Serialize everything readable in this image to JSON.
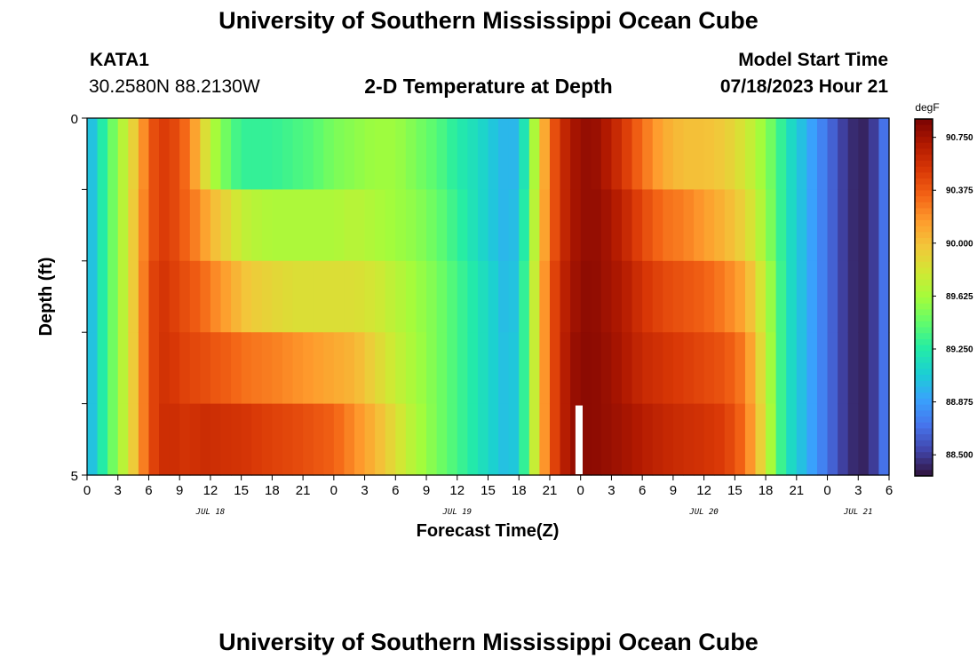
{
  "header": {
    "title": "University of Southern Mississippi Ocean Cube",
    "station": "KATA1",
    "coords": "30.2580N  88.2130W",
    "chart_title": "2-D Temperature at Depth",
    "model_label": "Model Start Time",
    "model_time": "07/18/2023 Hour 21"
  },
  "footer": {
    "title": "University of Southern Mississippi Ocean Cube"
  },
  "colors": {
    "colormap": [
      "#30123b",
      "#4145ab",
      "#4675ed",
      "#39a2fc",
      "#1bcfd4",
      "#24eca6",
      "#61fc6c",
      "#a4fc3b",
      "#d1e834",
      "#f3c63a",
      "#fe9b2d",
      "#f36315",
      "#d93806",
      "#b11901",
      "#7a0403"
    ],
    "missing": "#ffffff"
  },
  "chart_data": {
    "type": "heatmap",
    "title": "2-D Temperature at Depth",
    "xlabel": "Forecast Time(Z)",
    "ylabel": "Depth (ft)",
    "colorbar_label": "degF",
    "colorbar_ticks": [
      "90.750",
      "90.375",
      "90.000",
      "89.625",
      "89.250",
      "88.875",
      "88.500"
    ],
    "colorbar_values": [
      90.75,
      90.375,
      90.0,
      89.625,
      89.25,
      88.875,
      88.5
    ],
    "clim": [
      88.35,
      90.88
    ],
    "x_hours": [
      0,
      3,
      6,
      9,
      12,
      15,
      18,
      21,
      24,
      27,
      30,
      33,
      36,
      39,
      42,
      45,
      48,
      51,
      54,
      57,
      60,
      63,
      66,
      69,
      72,
      75,
      78
    ],
    "x_tick_labels": [
      "0",
      "3",
      "6",
      "9",
      "12",
      "15",
      "18",
      "21",
      "0",
      "3",
      "6",
      "9",
      "12",
      "15",
      "18",
      "21",
      "0",
      "3",
      "6",
      "9",
      "12",
      "15",
      "18",
      "21",
      "0",
      "3",
      "6"
    ],
    "x_range_hours": [
      0,
      78
    ],
    "day_labels": [
      {
        "label": "JUL 18",
        "hour": 12
      },
      {
        "label": "JUL 19",
        "hour": 36
      },
      {
        "label": "JUL 20",
        "hour": 60
      },
      {
        "label": "JUL 21",
        "hour": 75
      }
    ],
    "y_tick_labels": [
      "0",
      "5"
    ],
    "y_range": [
      0,
      5
    ],
    "depth_levels": [
      0,
      1,
      2,
      3,
      4,
      5
    ],
    "missing_segment": {
      "hour_start": 47.5,
      "hour_end": 48.2,
      "depth_start": 4,
      "depth_end": 5
    },
    "profiles_hours": [
      0,
      1,
      2,
      3,
      4,
      5,
      6,
      7,
      8,
      9,
      10,
      11,
      12,
      14,
      15,
      16,
      18,
      20,
      22,
      24,
      26,
      28,
      30,
      32,
      34,
      36,
      38,
      40,
      41,
      42,
      43,
      44,
      45,
      46,
      47,
      48,
      49,
      50,
      52,
      54,
      56,
      58,
      60,
      62,
      64,
      66,
      67,
      68,
      70,
      72,
      74,
      76,
      78
    ],
    "profiles_degF": [
      [
        88.9,
        88.9,
        88.9,
        88.9,
        88.9
      ],
      [
        89.15,
        89.15,
        89.15,
        89.15,
        89.15
      ],
      [
        89.35,
        89.35,
        89.35,
        89.35,
        89.35
      ],
      [
        89.6,
        89.6,
        89.6,
        89.6,
        89.6
      ],
      [
        89.8,
        89.8,
        89.8,
        89.8,
        89.8
      ],
      [
        90.05,
        90.1,
        90.1,
        90.1,
        90.1
      ],
      [
        90.35,
        90.35,
        90.4,
        90.4,
        90.4
      ],
      [
        90.5,
        90.5,
        90.55,
        90.55,
        90.55
      ],
      [
        90.5,
        90.5,
        90.52,
        90.55,
        90.6
      ],
      [
        90.4,
        90.4,
        90.45,
        90.5,
        90.55
      ],
      [
        90.25,
        90.3,
        90.4,
        90.45,
        90.55
      ],
      [
        90.0,
        90.2,
        90.35,
        90.45,
        90.58
      ],
      [
        89.7,
        90.05,
        90.25,
        90.4,
        90.58
      ],
      [
        89.4,
        89.85,
        90.1,
        90.35,
        90.55
      ],
      [
        89.3,
        89.75,
        90.0,
        90.3,
        90.55
      ],
      [
        89.3,
        89.7,
        89.95,
        90.28,
        90.52
      ],
      [
        89.3,
        89.65,
        89.9,
        90.25,
        90.48
      ],
      [
        89.35,
        89.65,
        89.85,
        90.2,
        90.45
      ],
      [
        89.4,
        89.65,
        89.85,
        90.15,
        90.4
      ],
      [
        89.5,
        89.65,
        89.85,
        90.1,
        90.35
      ],
      [
        89.55,
        89.7,
        89.85,
        90.05,
        90.2
      ],
      [
        89.6,
        89.65,
        89.8,
        89.9,
        90.05
      ],
      [
        89.6,
        89.6,
        89.7,
        89.75,
        89.85
      ],
      [
        89.5,
        89.55,
        89.6,
        89.62,
        89.65
      ],
      [
        89.4,
        89.45,
        89.5,
        89.5,
        89.5
      ],
      [
        89.25,
        89.3,
        89.35,
        89.35,
        89.35
      ],
      [
        89.15,
        89.15,
        89.2,
        89.2,
        89.2
      ],
      [
        89.0,
        89.0,
        89.05,
        89.05,
        89.05
      ],
      [
        88.95,
        88.95,
        88.95,
        88.98,
        88.98
      ],
      [
        89.0,
        89.05,
        89.1,
        89.1,
        89.1
      ],
      [
        89.4,
        89.45,
        89.5,
        89.5,
        89.5
      ],
      [
        89.9,
        89.95,
        90.0,
        90.0,
        90.0
      ],
      [
        90.3,
        90.3,
        90.35,
        90.35,
        90.35
      ],
      [
        90.55,
        90.55,
        90.6,
        90.6,
        90.6
      ],
      [
        90.7,
        90.7,
        90.72,
        90.75,
        90.75
      ],
      [
        90.78,
        90.78,
        90.8,
        90.82,
        90.82
      ],
      [
        90.8,
        90.8,
        90.82,
        90.82,
        90.82
      ],
      [
        90.75,
        90.78,
        90.78,
        90.8,
        90.8
      ],
      [
        90.55,
        90.65,
        90.7,
        90.72,
        90.75
      ],
      [
        90.3,
        90.45,
        90.55,
        90.6,
        90.68
      ],
      [
        90.1,
        90.3,
        90.45,
        90.55,
        90.62
      ],
      [
        90.0,
        90.25,
        90.4,
        90.5,
        90.58
      ],
      [
        90.0,
        90.15,
        90.35,
        90.45,
        90.55
      ],
      [
        89.95,
        90.05,
        90.25,
        90.4,
        90.5
      ],
      [
        89.8,
        89.9,
        90.1,
        90.25,
        90.3
      ],
      [
        89.55,
        89.6,
        89.7,
        89.75,
        89.8
      ],
      [
        89.4,
        89.4,
        89.45,
        89.45,
        89.45
      ],
      [
        89.2,
        89.2,
        89.2,
        89.2,
        89.2
      ],
      [
        88.95,
        88.95,
        88.95,
        88.95,
        88.95
      ],
      [
        88.7,
        88.7,
        88.7,
        88.7,
        88.7
      ],
      [
        88.45,
        88.45,
        88.45,
        88.45,
        88.45
      ],
      [
        88.4,
        88.4,
        88.4,
        88.4,
        88.4
      ],
      [
        88.8,
        88.8,
        88.8,
        88.8,
        88.8
      ]
    ]
  }
}
